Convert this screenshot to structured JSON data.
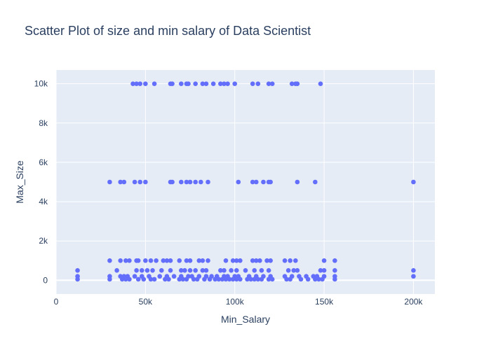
{
  "chart_data": {
    "type": "scatter",
    "title": "Scatter Plot of size and min salary of Data Scientist",
    "xlabel": "Min_Salary",
    "ylabel": "Max_Size",
    "xlim": [
      0,
      212000
    ],
    "ylim": [
      -700,
      10700
    ],
    "x_ticks": [
      {
        "value": 0,
        "label": "0"
      },
      {
        "value": 50000,
        "label": "50k"
      },
      {
        "value": 100000,
        "label": "100k"
      },
      {
        "value": 150000,
        "label": "150k"
      },
      {
        "value": 200000,
        "label": "200k"
      }
    ],
    "y_ticks": [
      {
        "value": 0,
        "label": "0"
      },
      {
        "value": 2000,
        "label": "2k"
      },
      {
        "value": 4000,
        "label": "4k"
      },
      {
        "value": 6000,
        "label": "6k"
      },
      {
        "value": 8000,
        "label": "8k"
      },
      {
        "value": 10000,
        "label": "10k"
      }
    ],
    "grid": true,
    "colors": {
      "marker": "#636efa",
      "plot_bg": "#e5ecf6",
      "grid": "#ffffff",
      "text": "#2a3f5f"
    },
    "series": [
      {
        "points": [
          [
            43000,
            10000
          ],
          [
            45000,
            10000
          ],
          [
            47000,
            10000
          ],
          [
            50000,
            10000
          ],
          [
            55000,
            10000
          ],
          [
            64000,
            10000
          ],
          [
            65000,
            10000
          ],
          [
            70000,
            10000
          ],
          [
            73000,
            10000
          ],
          [
            74000,
            10000
          ],
          [
            78000,
            10000
          ],
          [
            82000,
            10000
          ],
          [
            84000,
            10000
          ],
          [
            88000,
            10000
          ],
          [
            92000,
            10000
          ],
          [
            94000,
            10000
          ],
          [
            96000,
            10000
          ],
          [
            100000,
            10000
          ],
          [
            110000,
            10000
          ],
          [
            113000,
            10000
          ],
          [
            119000,
            10000
          ],
          [
            121000,
            10000
          ],
          [
            132000,
            10000
          ],
          [
            134000,
            10000
          ],
          [
            135000,
            10000
          ],
          [
            148000,
            10000
          ],
          [
            30000,
            5000
          ],
          [
            36000,
            5000
          ],
          [
            38000,
            5000
          ],
          [
            44000,
            5000
          ],
          [
            47000,
            5000
          ],
          [
            50000,
            5000
          ],
          [
            64000,
            5000
          ],
          [
            65000,
            5000
          ],
          [
            70000,
            5000
          ],
          [
            73000,
            5000
          ],
          [
            75000,
            5000
          ],
          [
            78000,
            5000
          ],
          [
            81000,
            5000
          ],
          [
            85000,
            5000
          ],
          [
            102000,
            5000
          ],
          [
            110000,
            5000
          ],
          [
            112000,
            5000
          ],
          [
            116000,
            5000
          ],
          [
            119000,
            5000
          ],
          [
            120000,
            5000
          ],
          [
            135000,
            5000
          ],
          [
            145000,
            5000
          ],
          [
            200000,
            5000
          ],
          [
            30000,
            1000
          ],
          [
            36000,
            1000
          ],
          [
            39000,
            1000
          ],
          [
            41000,
            1000
          ],
          [
            45000,
            1000
          ],
          [
            46000,
            1000
          ],
          [
            50000,
            1000
          ],
          [
            53000,
            1000
          ],
          [
            56000,
            1000
          ],
          [
            60000,
            1000
          ],
          [
            62000,
            1000
          ],
          [
            64000,
            1000
          ],
          [
            69000,
            1000
          ],
          [
            73000,
            1000
          ],
          [
            75000,
            1000
          ],
          [
            80000,
            1000
          ],
          [
            82000,
            1000
          ],
          [
            85000,
            1000
          ],
          [
            95000,
            1000
          ],
          [
            99000,
            1000
          ],
          [
            101000,
            1000
          ],
          [
            103000,
            1000
          ],
          [
            110000,
            1000
          ],
          [
            112000,
            1000
          ],
          [
            114000,
            1000
          ],
          [
            118000,
            1000
          ],
          [
            120000,
            1000
          ],
          [
            128000,
            1000
          ],
          [
            131000,
            1000
          ],
          [
            134000,
            1000
          ],
          [
            150000,
            1000
          ],
          [
            156000,
            1000
          ],
          [
            12000,
            500
          ],
          [
            34000,
            500
          ],
          [
            45000,
            500
          ],
          [
            48000,
            500
          ],
          [
            51000,
            500
          ],
          [
            54000,
            500
          ],
          [
            59000,
            500
          ],
          [
            64000,
            500
          ],
          [
            70000,
            500
          ],
          [
            72000,
            500
          ],
          [
            75000,
            500
          ],
          [
            78000,
            500
          ],
          [
            82000,
            500
          ],
          [
            84000,
            500
          ],
          [
            92000,
            500
          ],
          [
            94000,
            500
          ],
          [
            98000,
            500
          ],
          [
            101000,
            500
          ],
          [
            106000,
            500
          ],
          [
            111000,
            500
          ],
          [
            115000,
            500
          ],
          [
            119000,
            500
          ],
          [
            130000,
            500
          ],
          [
            133000,
            500
          ],
          [
            135000,
            500
          ],
          [
            148000,
            500
          ],
          [
            150000,
            500
          ],
          [
            156000,
            500
          ],
          [
            200000,
            500
          ],
          [
            12000,
            200
          ],
          [
            30000,
            200
          ],
          [
            36000,
            200
          ],
          [
            38000,
            200
          ],
          [
            40000,
            200
          ],
          [
            44000,
            200
          ],
          [
            48000,
            200
          ],
          [
            52000,
            200
          ],
          [
            58000,
            200
          ],
          [
            62000,
            200
          ],
          [
            66000,
            200
          ],
          [
            70000,
            200
          ],
          [
            74000,
            200
          ],
          [
            76000,
            200
          ],
          [
            80000,
            200
          ],
          [
            84000,
            200
          ],
          [
            87000,
            200
          ],
          [
            90000,
            200
          ],
          [
            94000,
            200
          ],
          [
            96000,
            200
          ],
          [
            100000,
            200
          ],
          [
            102000,
            200
          ],
          [
            108000,
            200
          ],
          [
            112000,
            200
          ],
          [
            116000,
            200
          ],
          [
            120000,
            200
          ],
          [
            128000,
            200
          ],
          [
            132000,
            200
          ],
          [
            136000,
            200
          ],
          [
            140000,
            200
          ],
          [
            144000,
            200
          ],
          [
            146000,
            200
          ],
          [
            150000,
            200
          ],
          [
            156000,
            200
          ],
          [
            200000,
            200
          ],
          [
            12000,
            50
          ],
          [
            30000,
            50
          ],
          [
            37000,
            50
          ],
          [
            39000,
            50
          ],
          [
            41000,
            50
          ],
          [
            46000,
            50
          ],
          [
            49000,
            50
          ],
          [
            53000,
            50
          ],
          [
            55000,
            50
          ],
          [
            61000,
            50
          ],
          [
            63000,
            50
          ],
          [
            69000,
            50
          ],
          [
            71000,
            50
          ],
          [
            73000,
            50
          ],
          [
            77000,
            50
          ],
          [
            79000,
            50
          ],
          [
            83000,
            50
          ],
          [
            86000,
            50
          ],
          [
            89000,
            50
          ],
          [
            91000,
            50
          ],
          [
            93000,
            50
          ],
          [
            95000,
            50
          ],
          [
            97000,
            50
          ],
          [
            99000,
            50
          ],
          [
            101000,
            50
          ],
          [
            103000,
            50
          ],
          [
            107000,
            50
          ],
          [
            109000,
            50
          ],
          [
            111000,
            50
          ],
          [
            113000,
            50
          ],
          [
            115000,
            50
          ],
          [
            119000,
            50
          ],
          [
            121000,
            50
          ],
          [
            129000,
            50
          ],
          [
            131000,
            50
          ],
          [
            137000,
            50
          ],
          [
            141000,
            50
          ],
          [
            145000,
            50
          ],
          [
            147000,
            50
          ],
          [
            149000,
            50
          ],
          [
            156000,
            50
          ]
        ]
      }
    ]
  }
}
